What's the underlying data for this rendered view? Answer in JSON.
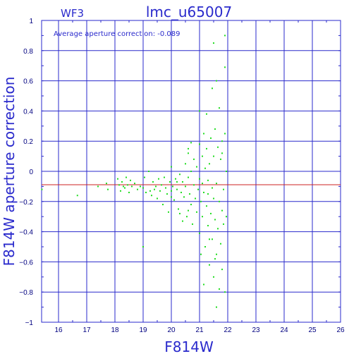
{
  "chart_data": {
    "type": "scatter",
    "title": "lmc_u65007",
    "chip_label": "WF3",
    "annotation": "Average aperture correction: -0.089",
    "xlabel": "F814W",
    "ylabel": "F814W aperture correction",
    "xlim": [
      15.4,
      26
    ],
    "ylim": [
      -1,
      1
    ],
    "x_ticks": [
      16,
      17,
      18,
      19,
      20,
      21,
      22,
      23,
      24,
      25,
      26
    ],
    "y_ticks": [
      -1,
      -0.8,
      -0.6,
      -0.4,
      -0.2,
      0,
      0.2,
      0.4,
      0.6,
      0.8,
      1
    ],
    "y_tick_labels": [
      "−1",
      "−0.8",
      "−0.6",
      "−0.4",
      "−0.2",
      "0",
      "0.2",
      "0.4",
      "0.6",
      "0.8",
      "1"
    ],
    "grid": true,
    "reference_line": {
      "y": -0.089,
      "color": "#cc2222"
    },
    "point_color": "#22dd22",
    "grid_color": "#2a2acc",
    "axis_color": "#000080",
    "points": [
      [
        15.41,
        -0.12
      ],
      [
        16.67,
        -0.16
      ],
      [
        17.4,
        -0.1
      ],
      [
        17.7,
        -0.08
      ],
      [
        17.75,
        -0.12
      ],
      [
        18.1,
        -0.05
      ],
      [
        18.15,
        -0.09
      ],
      [
        18.2,
        -0.13
      ],
      [
        18.25,
        -0.07
      ],
      [
        18.3,
        -0.1
      ],
      [
        18.35,
        -0.11
      ],
      [
        18.4,
        -0.04
      ],
      [
        18.45,
        -0.09
      ],
      [
        18.5,
        -0.14
      ],
      [
        18.55,
        -0.06
      ],
      [
        18.6,
        -0.1
      ],
      [
        18.7,
        -0.08
      ],
      [
        18.8,
        -0.12
      ],
      [
        18.9,
        -0.1
      ],
      [
        19.0,
        -0.11
      ],
      [
        19.05,
        -0.04
      ],
      [
        19.1,
        -0.14
      ],
      [
        19.2,
        0.0
      ],
      [
        19.25,
        -0.13
      ],
      [
        19.3,
        -0.16
      ],
      [
        19.35,
        -0.07
      ],
      [
        19.4,
        -0.12
      ],
      [
        19.45,
        -0.1
      ],
      [
        19.5,
        -0.18
      ],
      [
        19.55,
        -0.05
      ],
      [
        19.6,
        -0.13
      ],
      [
        19.65,
        -0.09
      ],
      [
        19.7,
        -0.22
      ],
      [
        19.75,
        -0.04
      ],
      [
        19.8,
        -0.11
      ],
      [
        19.85,
        -0.15
      ],
      [
        19.9,
        -0.27
      ],
      [
        19.95,
        -0.07
      ],
      [
        20.0,
        0.03
      ],
      [
        20.0,
        -0.13
      ],
      [
        20.05,
        -0.1
      ],
      [
        20.1,
        -0.19
      ],
      [
        20.15,
        -0.05
      ],
      [
        20.2,
        -0.12
      ],
      [
        20.25,
        -0.25
      ],
      [
        20.3,
        -0.02
      ],
      [
        20.35,
        -0.14
      ],
      [
        20.4,
        -0.07
      ],
      [
        20.45,
        -0.17
      ],
      [
        20.5,
        0.05
      ],
      [
        20.5,
        -0.1
      ],
      [
        20.55,
        -0.3
      ],
      [
        20.6,
        -0.04
      ],
      [
        20.6,
        0.12
      ],
      [
        20.65,
        -0.15
      ],
      [
        20.7,
        -0.22
      ],
      [
        20.7,
        0.0
      ],
      [
        20.75,
        -0.35
      ],
      [
        20.8,
        -0.09
      ],
      [
        20.8,
        0.08
      ],
      [
        20.85,
        -0.18
      ],
      [
        20.9,
        -0.27
      ],
      [
        20.9,
        0.03
      ],
      [
        20.95,
        -0.12
      ],
      [
        21.0,
        -0.05
      ],
      [
        21.0,
        0.18
      ],
      [
        21.0,
        -0.41
      ],
      [
        21.05,
        -0.2
      ],
      [
        21.1,
        0.1
      ],
      [
        21.1,
        -0.08
      ],
      [
        21.1,
        -0.3
      ],
      [
        21.15,
        0.25
      ],
      [
        21.15,
        -0.14
      ],
      [
        21.2,
        -0.5
      ],
      [
        21.2,
        0.02
      ],
      [
        21.25,
        -0.23
      ],
      [
        21.25,
        0.15
      ],
      [
        21.3,
        -0.36
      ],
      [
        21.3,
        -0.06
      ],
      [
        21.35,
        0.05
      ],
      [
        21.35,
        -0.62
      ],
      [
        21.4,
        -0.28
      ],
      [
        21.4,
        0.22
      ],
      [
        21.45,
        -0.11
      ],
      [
        21.45,
        -0.45
      ],
      [
        21.5,
        0.1
      ],
      [
        21.5,
        -0.18
      ],
      [
        21.5,
        -0.7
      ],
      [
        21.55,
        -0.32
      ],
      [
        21.55,
        0.28
      ],
      [
        21.6,
        -0.08
      ],
      [
        21.6,
        -0.55
      ],
      [
        21.6,
        0.6
      ],
      [
        21.65,
        -0.38
      ],
      [
        21.65,
        0.16
      ],
      [
        21.7,
        -0.2
      ],
      [
        21.7,
        -0.78
      ],
      [
        21.7,
        0.42
      ],
      [
        21.75,
        -0.48
      ],
      [
        21.75,
        0.08
      ],
      [
        21.8,
        -0.26
      ],
      [
        21.8,
        -0.65
      ],
      [
        21.8,
        0.2
      ],
      [
        21.85,
        -0.12
      ],
      [
        21.85,
        -0.35
      ],
      [
        21.9,
        0.69
      ],
      [
        21.9,
        0.9
      ],
      [
        21.9,
        -0.8
      ],
      [
        21.95,
        -0.3
      ],
      [
        21.95,
        0.0
      ],
      [
        21.0,
        0.4
      ],
      [
        21.25,
        0.38
      ],
      [
        21.15,
        -0.75
      ],
      [
        21.45,
        0.55
      ],
      [
        21.5,
        0.85
      ],
      [
        20.3,
        -0.28
      ],
      [
        20.4,
        -0.33
      ],
      [
        20.6,
        -0.26
      ],
      [
        20.0,
        -0.17
      ],
      [
        20.2,
        -0.07
      ],
      [
        19.0,
        -0.5
      ],
      [
        20.6,
        0.15
      ],
      [
        20.7,
        0.19
      ],
      [
        21.8,
        0.12
      ],
      [
        21.9,
        0.25
      ],
      [
        21.6,
        -0.9
      ],
      [
        21.3,
        -0.15
      ],
      [
        21.05,
        -0.55
      ],
      [
        21.35,
        -0.45
      ],
      [
        21.55,
        -0.58
      ]
    ]
  }
}
